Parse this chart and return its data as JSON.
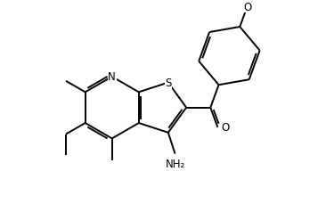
{
  "bg_color": "#ffffff",
  "line_color": "#000000",
  "line_width": 1.4,
  "font_size": 8.5,
  "xlim": [
    0,
    9
  ],
  "ylim": [
    0,
    6.5
  ]
}
